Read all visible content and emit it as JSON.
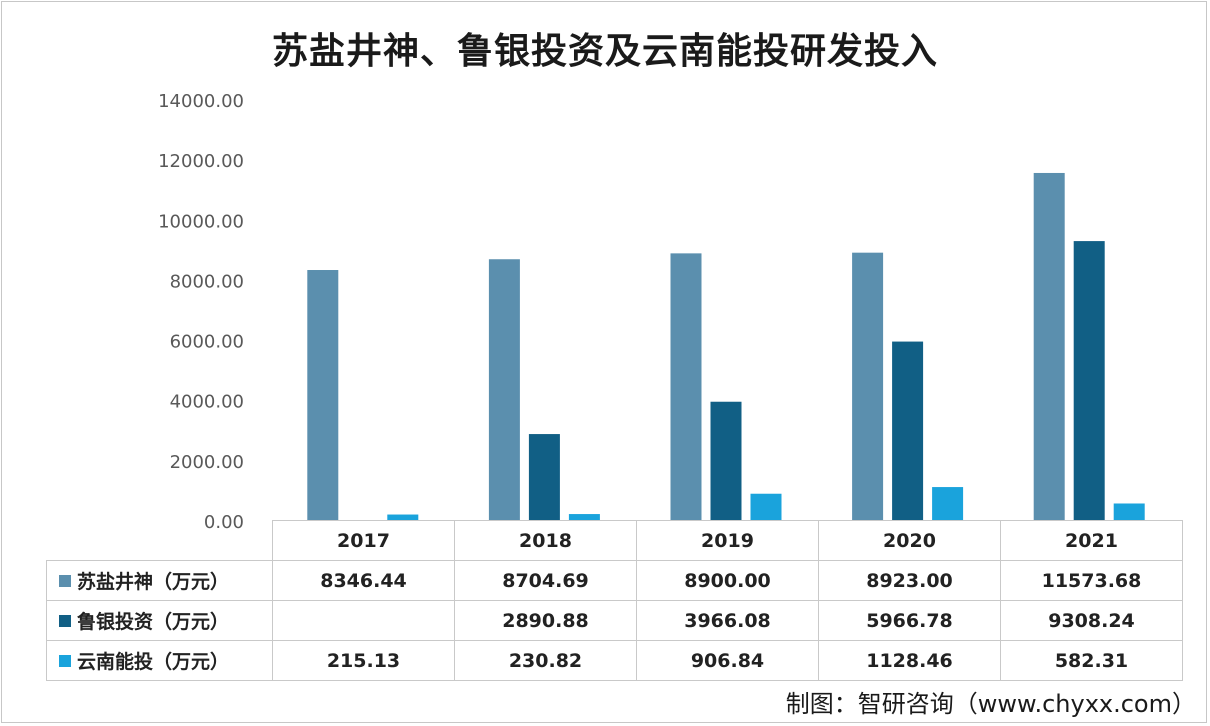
{
  "chart_data": {
    "type": "bar",
    "title": "苏盐井神、鲁银投资及云南能投研发投入",
    "categories": [
      "2017",
      "2018",
      "2019",
      "2020",
      "2021"
    ],
    "ylim": [
      0,
      14000
    ],
    "yticks": [
      "0.00",
      "2000.00",
      "4000.00",
      "6000.00",
      "8000.00",
      "10000.00",
      "12000.00",
      "14000.00"
    ],
    "grid": false,
    "legend_placement": "data-table",
    "series": [
      {
        "name": "苏盐井神（万元）",
        "color": "#5b8fae",
        "values": [
          8346.44,
          8704.69,
          8900.0,
          8923.0,
          11573.68
        ],
        "labels": [
          "8346.44",
          "8704.69",
          "8900.00",
          "8923.00",
          "11573.68"
        ]
      },
      {
        "name": "鲁银投资（万元）",
        "color": "#115f85",
        "values": [
          null,
          2890.88,
          3966.08,
          5966.78,
          9308.24
        ],
        "labels": [
          "",
          "2890.88",
          "3966.08",
          "5966.78",
          "9308.24"
        ]
      },
      {
        "name": "云南能投（万元）",
        "color": "#1aa3dc",
        "values": [
          215.13,
          230.82,
          906.84,
          1128.46,
          582.31
        ],
        "labels": [
          "215.13",
          "230.82",
          "906.84",
          "1128.46",
          "582.31"
        ]
      }
    ]
  },
  "source": "制图：智研咨询（www.chyxx.com）"
}
